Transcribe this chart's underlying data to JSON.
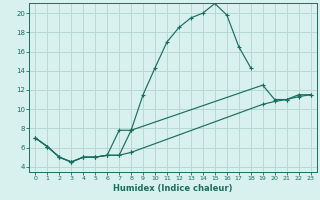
{
  "xlabel": "Humidex (Indice chaleur)",
  "bg_color": "#d8f0ee",
  "grid_color": "#b8d8d4",
  "line_color": "#1a6e60",
  "xlim": [
    -0.5,
    23.5
  ],
  "ylim": [
    3.5,
    21.0
  ],
  "xticks": [
    0,
    1,
    2,
    3,
    4,
    5,
    6,
    7,
    8,
    9,
    10,
    11,
    12,
    13,
    14,
    15,
    16,
    17,
    18,
    19,
    20,
    21,
    22,
    23
  ],
  "yticks": [
    4,
    6,
    8,
    10,
    12,
    14,
    16,
    18,
    20
  ],
  "series1_x": [
    0,
    1,
    2,
    3,
    4,
    5,
    6,
    7,
    8,
    9,
    10,
    11,
    12,
    13,
    14,
    15,
    16,
    17,
    18
  ],
  "series1_y": [
    7.0,
    6.1,
    5.0,
    4.5,
    5.0,
    5.0,
    5.2,
    5.2,
    7.8,
    11.5,
    14.3,
    17.0,
    18.5,
    19.5,
    20.0,
    21.0,
    19.8,
    16.5,
    14.3
  ],
  "series2_seg1_x": [
    0,
    1,
    2,
    3,
    4,
    5,
    6,
    7,
    8
  ],
  "series2_seg1_y": [
    7.0,
    6.1,
    5.0,
    4.5,
    5.0,
    5.0,
    5.2,
    7.8,
    7.8
  ],
  "series2_seg2_x": [
    8,
    19,
    20,
    21,
    22,
    23
  ],
  "series2_seg2_y": [
    7.8,
    12.5,
    11.0,
    11.0,
    11.5,
    11.5
  ],
  "series3_seg1_x": [
    0,
    1,
    2,
    3,
    4,
    5,
    6,
    7,
    8
  ],
  "series3_seg1_y": [
    7.0,
    6.1,
    5.0,
    4.5,
    5.0,
    5.0,
    5.2,
    5.2,
    5.5
  ],
  "series3_seg2_x": [
    8,
    19,
    20,
    21,
    22,
    23
  ],
  "series3_seg2_y": [
    5.5,
    10.5,
    10.8,
    11.0,
    11.3,
    11.5
  ]
}
